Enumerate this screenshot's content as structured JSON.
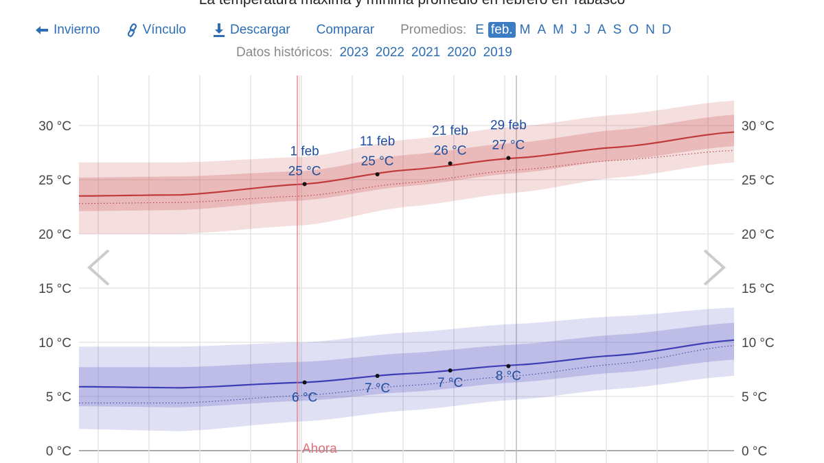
{
  "header": {
    "title": "La temperatura máxima y mínima promedio en febrero en Tabasco",
    "back_link": {
      "label": "Invierno",
      "icon": "arrow-left-icon"
    },
    "link": {
      "label": "Vínculo",
      "icon": "link-icon"
    },
    "download": {
      "label": "Descargar",
      "icon": "download-icon"
    },
    "compare": {
      "label": "Comparar"
    },
    "averages_label": "Promedios:",
    "months": [
      "E",
      "feb.",
      "M",
      "A",
      "M",
      "J",
      "J",
      "A",
      "S",
      "O",
      "N",
      "D"
    ],
    "selected_month": "feb.",
    "historical_label": "Datos históricos:",
    "years": [
      "2023",
      "2022",
      "2021",
      "2020",
      "2019"
    ]
  },
  "colors": {
    "accent": "#3b7cc2",
    "high": "#c0393b",
    "low": "#3c3cb4",
    "now": "#e0707a"
  },
  "chart_data": {
    "type": "area",
    "title": "La temperatura máxima y mínima promedio en febrero en Tabasco",
    "xlim": [
      "2024-01-01",
      "2024-03-31"
    ],
    "ylim": [
      0,
      32
    ],
    "yticks": [
      0,
      5,
      10,
      15,
      20,
      25,
      30
    ],
    "ytick_labels": [
      "0 °C",
      "5 °C",
      "10 °C",
      "15 °C",
      "20 °C",
      "25 °C",
      "30 °C"
    ],
    "grid": true,
    "x": [
      "2024-01-01",
      "2024-01-15",
      "2024-02-01",
      "2024-02-15",
      "2024-03-01",
      "2024-03-15",
      "2024-03-31"
    ],
    "high": {
      "mean": [
        23.5,
        23.6,
        24.6,
        25.9,
        27.0,
        28.0,
        29.4
      ],
      "p25": [
        22.1,
        22.2,
        23.1,
        24.4,
        25.6,
        26.8,
        28.1
      ],
      "p75": [
        25.2,
        25.3,
        25.8,
        27.3,
        28.4,
        29.6,
        31.0
      ],
      "p10": [
        20.0,
        20.0,
        20.8,
        22.5,
        23.8,
        25.2,
        26.6
      ],
      "p90": [
        26.6,
        26.6,
        27.1,
        28.7,
        29.9,
        31.0,
        32.3
      ],
      "dotted": [
        22.8,
        22.9,
        23.5,
        24.7,
        25.9,
        26.8,
        27.7
      ]
    },
    "low": {
      "mean": [
        5.9,
        5.8,
        6.3,
        7.1,
        7.9,
        8.8,
        10.2
      ],
      "p25": [
        4.1,
        4.0,
        4.6,
        5.4,
        6.3,
        7.2,
        8.4
      ],
      "p75": [
        7.7,
        7.7,
        8.2,
        9.0,
        9.8,
        10.7,
        11.8
      ],
      "p10": [
        2.0,
        1.8,
        2.7,
        3.7,
        4.7,
        5.7,
        6.9
      ],
      "p90": [
        9.6,
        9.6,
        10.0,
        10.9,
        11.7,
        12.4,
        13.2
      ],
      "dotted": [
        4.4,
        4.4,
        5.1,
        6.0,
        6.9,
        8.0,
        9.7
      ]
    },
    "annotations": [
      {
        "date": "2024-02-01",
        "label": "1 feb",
        "high": 24.6,
        "high_label": "25 °C",
        "low": 6.3,
        "low_label": "6 °C"
      },
      {
        "date": "2024-02-11",
        "label": "11 feb",
        "high": 25.5,
        "high_label": "25 °C",
        "low": 6.9,
        "low_label": "7 °C"
      },
      {
        "date": "2024-02-21",
        "label": "21 feb",
        "high": 26.5,
        "high_label": "26 °C",
        "low": 7.4,
        "low_label": "7 °C"
      },
      {
        "date": "2024-02-29",
        "label": "29 feb",
        "high": 27.0,
        "high_label": "27 °C",
        "low": 7.8,
        "low_label": "8 °C"
      }
    ],
    "now_marker": {
      "label": "Ahora",
      "date": "2024-01-31"
    }
  }
}
